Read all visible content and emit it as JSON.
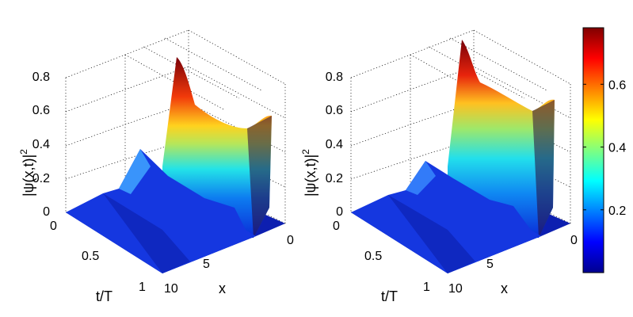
{
  "chart_data": [
    {
      "type": "surface",
      "ylabel": "|ψ(x,t)|",
      "ylabel_superscript": "2",
      "xlabel": "x",
      "tlabel": "t/T",
      "z_ticks": [
        "0",
        "0.2",
        "0.4",
        "0.6",
        "0.8"
      ],
      "x_ticks": [
        "0",
        "5",
        "10"
      ],
      "t_ticks": [
        "0",
        "0.5",
        "1"
      ],
      "x_range": [
        0,
        10
      ],
      "t_range": [
        0,
        1
      ],
      "z_range": [
        0,
        0.8
      ],
      "grid": true,
      "colormap": "jet",
      "profile_t": [
        0,
        0.1,
        0.2,
        0.3,
        0.4,
        0.5,
        0.6,
        0.7,
        0.8,
        0.9,
        1.0
      ],
      "peak_near_x0": [
        0.05,
        0.12,
        0.32,
        0.22,
        0.15,
        0.1,
        0.06,
        0.04,
        0.03,
        0.02,
        0.01
      ],
      "ridge_x": 6.0,
      "ridge_height": [
        0.79,
        0.68,
        0.55,
        0.47,
        0.44,
        0.44,
        0.46,
        0.5,
        0.56,
        0.6,
        0.6
      ]
    },
    {
      "type": "surface",
      "ylabel": "|ψ(x,t)|",
      "ylabel_superscript": "2",
      "xlabel": "x",
      "tlabel": "t/T",
      "z_ticks": [
        "0",
        "0.2",
        "0.4",
        "0.6",
        "0.8"
      ],
      "x_ticks": [
        "0",
        "5",
        "10"
      ],
      "t_ticks": [
        "0",
        "0.5",
        "1"
      ],
      "x_range": [
        0,
        10
      ],
      "t_range": [
        0,
        1
      ],
      "z_range": [
        0,
        0.8
      ],
      "grid": true,
      "colormap": "jet",
      "profile_t": [
        0,
        0.1,
        0.2,
        0.3,
        0.4,
        0.5,
        0.6,
        0.7,
        0.8,
        0.9,
        1.0
      ],
      "peak_near_x0": [
        0.04,
        0.1,
        0.28,
        0.2,
        0.12,
        0.08,
        0.05,
        0.03,
        0.02,
        0.01,
        0.01
      ],
      "ridge_x": 6.0,
      "ridge_height": [
        0.79,
        0.72,
        0.66,
        0.62,
        0.6,
        0.6,
        0.6,
        0.6,
        0.58,
        0.6,
        0.58
      ]
    }
  ],
  "colorbar": {
    "ticks": [
      "0.2",
      "0.4",
      "0.6"
    ],
    "tick_values": [
      0.2,
      0.4,
      0.6
    ],
    "range": [
      0,
      0.78
    ]
  }
}
